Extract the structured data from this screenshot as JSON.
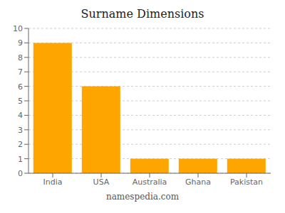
{
  "chart_data": {
    "type": "bar",
    "title": "Surname Dimensions",
    "categories": [
      "India",
      "USA",
      "Australia",
      "Ghana",
      "Pakistan"
    ],
    "values": [
      9,
      6,
      1,
      1,
      1
    ],
    "color": "#FFA500",
    "ylim": [
      0,
      10
    ],
    "yticks": [
      0,
      1,
      2,
      3,
      4,
      5,
      6,
      7,
      8,
      9,
      10
    ],
    "grid": true,
    "annotations": [
      "namespedia.com"
    ]
  }
}
